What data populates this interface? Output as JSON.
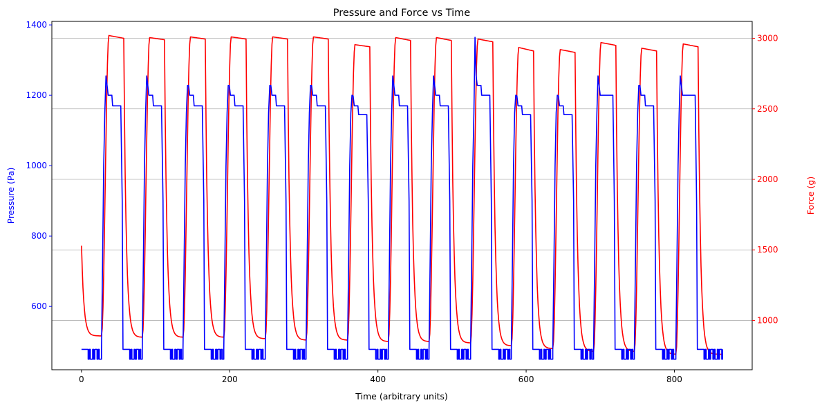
{
  "chart_data": {
    "type": "line",
    "title": "Pressure and Force vs Time",
    "xlabel": "Time (arbitrary units)",
    "ylabel_left": "Pressure (Pa)",
    "ylabel_right": "Force (g)",
    "xlim": [
      -40,
      905
    ],
    "ylim_left": [
      420,
      1410
    ],
    "ylim_right": [
      650,
      3120
    ],
    "x_ticks": [
      0,
      200,
      400,
      600,
      800
    ],
    "y_ticks_left": [
      600,
      800,
      1000,
      1200,
      1400
    ],
    "y_ticks_right": [
      1000,
      1500,
      2000,
      2500,
      3000
    ],
    "grid": "horizontal lines at right-axis ticks",
    "colors": {
      "pressure": "#0000ff",
      "force": "#ff0000",
      "left_axis_text": "#0000ff",
      "right_axis_text": "#ff0000",
      "grid": "#b0b0b0"
    },
    "cycles": [
      {
        "start": 27,
        "pressure_peak": 1255,
        "pressure_plateau": 1200,
        "pressure_end": 1170,
        "force_peak": 3020,
        "force_end": 3000
      },
      {
        "start": 82,
        "pressure_peak": 1255,
        "pressure_plateau": 1200,
        "pressure_end": 1170,
        "force_peak": 3005,
        "force_end": 2990
      },
      {
        "start": 137,
        "pressure_peak": 1228,
        "pressure_plateau": 1200,
        "pressure_end": 1170,
        "force_peak": 3010,
        "force_end": 2995
      },
      {
        "start": 192,
        "pressure_peak": 1228,
        "pressure_plateau": 1200,
        "pressure_end": 1170,
        "force_peak": 3010,
        "force_end": 2995
      },
      {
        "start": 248,
        "pressure_peak": 1228,
        "pressure_plateau": 1200,
        "pressure_end": 1170,
        "force_peak": 3010,
        "force_end": 2995
      },
      {
        "start": 303,
        "pressure_peak": 1228,
        "pressure_plateau": 1200,
        "pressure_end": 1170,
        "force_peak": 3010,
        "force_end": 2995
      },
      {
        "start": 359,
        "pressure_peak": 1200,
        "pressure_plateau": 1170,
        "pressure_end": 1145,
        "force_peak": 2955,
        "force_end": 2940
      },
      {
        "start": 414,
        "pressure_peak": 1255,
        "pressure_plateau": 1200,
        "pressure_end": 1170,
        "force_peak": 3005,
        "force_end": 2985
      },
      {
        "start": 469,
        "pressure_peak": 1255,
        "pressure_plateau": 1200,
        "pressure_end": 1170,
        "force_peak": 3005,
        "force_end": 2985
      },
      {
        "start": 525,
        "pressure_peak": 1365,
        "pressure_plateau": 1228,
        "pressure_end": 1200,
        "force_peak": 2995,
        "force_end": 2975
      },
      {
        "start": 580,
        "pressure_peak": 1200,
        "pressure_plateau": 1170,
        "pressure_end": 1145,
        "force_peak": 2935,
        "force_end": 2910
      },
      {
        "start": 636,
        "pressure_peak": 1200,
        "pressure_plateau": 1170,
        "pressure_end": 1145,
        "force_peak": 2920,
        "force_end": 2900
      },
      {
        "start": 691,
        "pressure_peak": 1255,
        "pressure_plateau": 1200,
        "pressure_end": 1200,
        "force_peak": 2970,
        "force_end": 2950
      },
      {
        "start": 746,
        "pressure_peak": 1228,
        "pressure_plateau": 1200,
        "pressure_end": 1170,
        "force_peak": 2930,
        "force_end": 2910
      },
      {
        "start": 802,
        "pressure_peak": 1255,
        "pressure_plateau": 1200,
        "pressure_end": 1200,
        "force_peak": 2960,
        "force_end": 2940
      }
    ],
    "series": [
      {
        "axis": "left",
        "color": "#0000ff",
        "x_end": 865,
        "baseline_high": 478,
        "baseline_low": 450,
        "rise_duration": 6,
        "plateau_length": 20,
        "fall_duration": 3
      },
      {
        "axis": "right",
        "color": "#ff0000",
        "x_end": 865,
        "initial_value": 1530,
        "rise_duration": 10,
        "plateau_length": 20,
        "fall_duration": 2,
        "trough_values": [
          890,
          880,
          880,
          880,
          870,
          860,
          860,
          850,
          850,
          840,
          820,
          800,
          780,
          780,
          760,
          760
        ]
      }
    ]
  }
}
